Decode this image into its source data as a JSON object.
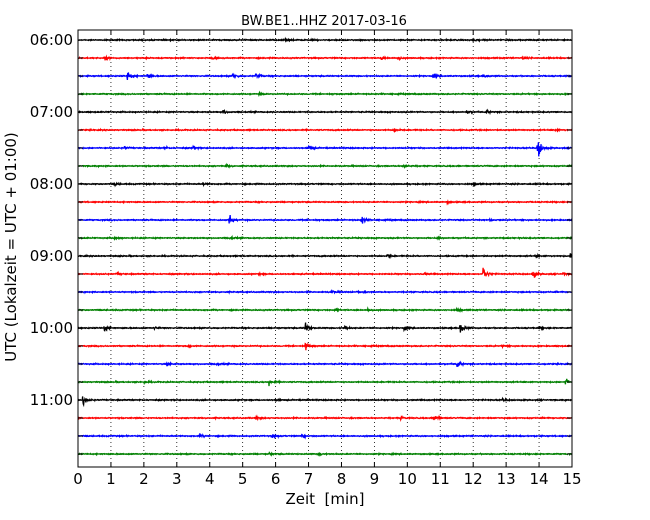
{
  "chart_data": {
    "type": "line",
    "title": "BW.BE1..HHZ 2017-03-16",
    "xlabel": "Zeit  [min]",
    "ylabel": "UTC (Lokalzeit = UTC + 01:00)",
    "xlim": [
      0,
      15
    ],
    "x_ticks": [
      "0",
      "1",
      "2",
      "3",
      "4",
      "5",
      "6",
      "7",
      "8",
      "9",
      "10",
      "11",
      "12",
      "13",
      "14",
      "15"
    ],
    "y_tick_labels": [
      "06:00",
      "07:00",
      "08:00",
      "09:00",
      "10:00",
      "11:00"
    ],
    "vertical_grid": "dotted",
    "line_colors": [
      "#000000",
      "#ff0000",
      "#0000ff",
      "#008000"
    ],
    "series": [
      {
        "start": "06:00",
        "color": "#000000",
        "events": [
          [
            6.3,
            0.4
          ],
          [
            12.0,
            0.5
          ]
        ]
      },
      {
        "start": "06:15",
        "color": "#ff0000",
        "events": [
          [
            0.8,
            0.4
          ],
          [
            4.1,
            0.3
          ],
          [
            9.2,
            0.6
          ],
          [
            9.7,
            0.6
          ],
          [
            13.5,
            0.3
          ]
        ]
      },
      {
        "start": "06:30",
        "color": "#0000ff",
        "events": [
          [
            1.5,
            1.4
          ],
          [
            2.1,
            0.9
          ],
          [
            4.7,
            0.9
          ],
          [
            5.4,
            0.8
          ],
          [
            10.8,
            0.4
          ],
          [
            12.3,
            0.4
          ]
        ]
      },
      {
        "start": "06:45",
        "color": "#008000",
        "events": [
          [
            5.5,
            0.3
          ]
        ]
      },
      {
        "start": "07:00",
        "color": "#000000",
        "events": [
          [
            4.4,
            0.6
          ],
          [
            11.8,
            0.4
          ],
          [
            12.4,
            0.4
          ]
        ]
      },
      {
        "start": "07:15",
        "color": "#ff0000",
        "events": [
          [
            9.6,
            0.4
          ],
          [
            14.5,
            0.3
          ]
        ]
      },
      {
        "start": "07:30",
        "color": "#0000ff",
        "events": [
          [
            1.4,
            0.3
          ],
          [
            2.6,
            0.4
          ],
          [
            3.5,
            0.4
          ],
          [
            7.0,
            0.7
          ],
          [
            13.95,
            4.0
          ]
        ]
      },
      {
        "start": "07:45",
        "color": "#008000",
        "events": [
          [
            4.5,
            0.4
          ],
          [
            9.9,
            0.5
          ]
        ]
      },
      {
        "start": "08:00",
        "color": "#000000",
        "events": [
          [
            1.1,
            0.4
          ],
          [
            3.8,
            0.3
          ],
          [
            12.0,
            0.5
          ]
        ]
      },
      {
        "start": "08:15",
        "color": "#ff0000",
        "events": [
          [
            11.2,
            0.3
          ]
        ]
      },
      {
        "start": "08:30",
        "color": "#0000ff",
        "events": [
          [
            4.6,
            1.5
          ],
          [
            8.6,
            1.4
          ],
          [
            12.5,
            0.3
          ]
        ]
      },
      {
        "start": "08:45",
        "color": "#008000",
        "events": [
          [
            1.1,
            0.4
          ],
          [
            10.9,
            0.4
          ],
          [
            4.6,
            0.3
          ]
        ]
      },
      {
        "start": "09:00",
        "color": "#000000",
        "events": [
          [
            9.4,
            0.4
          ],
          [
            13.9,
            0.3
          ],
          [
            14.95,
            0.6
          ]
        ]
      },
      {
        "start": "09:15",
        "color": "#ff0000",
        "events": [
          [
            1.2,
            0.3
          ],
          [
            5.5,
            0.3
          ],
          [
            10.5,
            0.3
          ],
          [
            12.3,
            2.3
          ],
          [
            13.8,
            1.5
          ],
          [
            14.7,
            0.4
          ]
        ]
      },
      {
        "start": "09:30",
        "color": "#0000ff",
        "events": [
          [
            7.7,
            0.3
          ],
          [
            8.5,
            0.3
          ]
        ]
      },
      {
        "start": "09:45",
        "color": "#008000",
        "events": [
          [
            7.8,
            0.4
          ],
          [
            8.8,
            0.4
          ],
          [
            11.5,
            0.4
          ]
        ]
      },
      {
        "start": "10:00",
        "color": "#000000",
        "events": [
          [
            0.8,
            0.8
          ],
          [
            2.3,
            0.3
          ],
          [
            6.9,
            1.4
          ],
          [
            8.1,
            0.4
          ],
          [
            9.9,
            0.4
          ],
          [
            11.6,
            1.7
          ],
          [
            14.0,
            0.4
          ]
        ]
      },
      {
        "start": "10:15",
        "color": "#ff0000",
        "events": [
          [
            3.3,
            0.4
          ],
          [
            6.9,
            1.0
          ],
          [
            12.9,
            0.3
          ]
        ]
      },
      {
        "start": "10:30",
        "color": "#0000ff",
        "events": [
          [
            2.7,
            0.4
          ],
          [
            11.5,
            1.1
          ],
          [
            4.2,
            0.3
          ]
        ]
      },
      {
        "start": "10:45",
        "color": "#008000",
        "events": [
          [
            2.0,
            0.3
          ],
          [
            5.8,
            1.0
          ],
          [
            14.8,
            1.0
          ]
        ]
      },
      {
        "start": "11:00",
        "color": "#000000",
        "events": [
          [
            0.15,
            1.3
          ],
          [
            6.0,
            0.3
          ],
          [
            12.9,
            0.3
          ]
        ]
      },
      {
        "start": "11:15",
        "color": "#ff0000",
        "events": [
          [
            5.4,
            0.4
          ],
          [
            9.8,
            0.4
          ],
          [
            10.8,
            1.3
          ]
        ]
      },
      {
        "start": "11:30",
        "color": "#0000ff",
        "events": [
          [
            3.7,
            0.5
          ],
          [
            5.9,
            0.4
          ],
          [
            6.8,
            0.4
          ]
        ]
      },
      {
        "start": "11:45",
        "color": "#008000",
        "events": [
          [
            5.8,
            0.3
          ],
          [
            7.3,
            0.4
          ]
        ]
      }
    ]
  }
}
